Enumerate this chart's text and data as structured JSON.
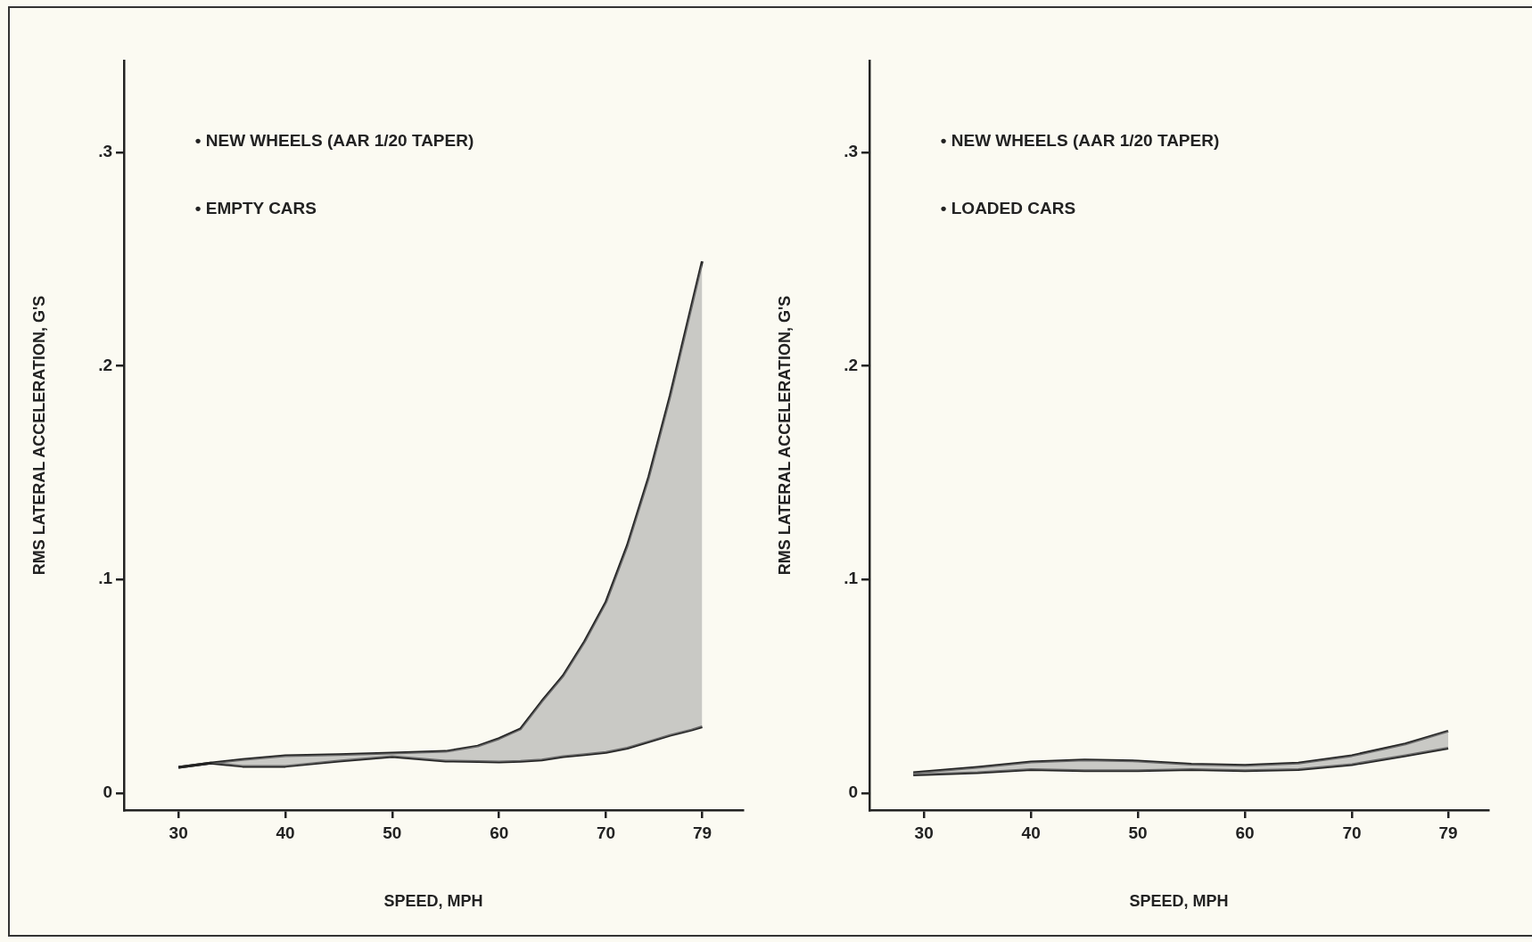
{
  "chart_data": [
    {
      "type": "line",
      "xlabel": "SPEED, MPH",
      "ylabel": "RMS LATERAL ACCELERATION, G'S",
      "annotations": [
        "• NEW WHEELS (AAR 1/20 TAPER)",
        "• EMPTY CARS"
      ],
      "xlim": [
        24.9,
        82.8
      ],
      "xticks": [
        30,
        40,
        50,
        60,
        70,
        79
      ],
      "ylim": [
        -0.008,
        0.343
      ],
      "yticks": [
        {
          "value": 0,
          "label": "0"
        },
        {
          "value": 0.1,
          "label": ".1"
        },
        {
          "value": 0.2,
          "label": ".2"
        },
        {
          "value": 0.3,
          "label": ".3"
        }
      ],
      "grid": false,
      "marker": "none",
      "series": [
        {
          "color": "#222222",
          "x": [
            30,
            33,
            36,
            40,
            45,
            50,
            55,
            58,
            60,
            62,
            64,
            66,
            68,
            70,
            72,
            74,
            76,
            78,
            79
          ],
          "values": [
            0.012,
            0.014,
            0.0157,
            0.0175,
            0.018,
            0.0187,
            0.0195,
            0.022,
            0.0255,
            0.03,
            0.043,
            0.055,
            0.071,
            0.0895,
            0.116,
            0.148,
            0.186,
            0.228,
            0.249
          ],
          "upper": [
            0.012,
            0.014,
            0.0157,
            0.0175,
            0.018,
            0.0187,
            0.0195,
            0.022,
            0.0255,
            0.03,
            0.043,
            0.055,
            0.071,
            0.0895,
            0.116,
            0.148,
            0.186,
            0.228,
            0.249
          ],
          "lower": [
            0.012,
            0.014,
            0.0125,
            0.0125,
            0.015,
            0.017,
            0.015,
            0.0147,
            0.0145,
            0.0148,
            0.0155,
            0.017,
            0.018,
            0.019,
            0.021,
            0.024,
            0.027,
            0.0295,
            0.031
          ]
        },
        {
          "color": "#222222",
          "x": [
            30,
            33,
            36,
            40,
            45,
            50,
            55,
            58,
            60,
            62,
            64,
            66,
            68,
            70,
            72,
            74,
            76,
            78,
            79
          ],
          "values": [
            0.012,
            0.014,
            0.0125,
            0.0125,
            0.015,
            0.017,
            0.015,
            0.0147,
            0.0145,
            0.0148,
            0.0155,
            0.017,
            0.018,
            0.019,
            0.021,
            0.024,
            0.027,
            0.0295,
            0.031
          ]
        }
      ]
    },
    {
      "type": "line",
      "xlabel": "SPEED, MPH",
      "ylabel": "RMS LATERAL ACCELERATION, G'S",
      "annotations": [
        "• NEW WHEELS (AAR 1/20 TAPER)",
        "• LOADED CARS"
      ],
      "xlim": [
        24.9,
        82.75
      ],
      "xticks": [
        30,
        40,
        50,
        60,
        70,
        79
      ],
      "ylim": [
        -0.008,
        0.343
      ],
      "yticks": [
        {
          "value": 0,
          "label": "0"
        },
        {
          "value": 0.1,
          "label": ".1"
        },
        {
          "value": 0.2,
          "label": ".2"
        },
        {
          "value": 0.3,
          "label": ".3"
        }
      ],
      "grid": false,
      "marker": "none",
      "series": [
        {
          "color": "#222222",
          "x": [
            29,
            35,
            40,
            45,
            50,
            55,
            60,
            65,
            70,
            75,
            79
          ],
          "values": [
            0.0095,
            0.012,
            0.0145,
            0.0155,
            0.015,
            0.0135,
            0.013,
            0.014,
            0.0175,
            0.023,
            0.029
          ],
          "upper": [
            0.0095,
            0.012,
            0.0145,
            0.0155,
            0.015,
            0.0135,
            0.013,
            0.014,
            0.0175,
            0.023,
            0.029
          ],
          "lower": [
            0.0085,
            0.0095,
            0.011,
            0.0105,
            0.0105,
            0.011,
            0.0105,
            0.011,
            0.0133,
            0.0175,
            0.021
          ]
        },
        {
          "color": "#222222",
          "x": [
            29,
            35,
            40,
            45,
            50,
            55,
            60,
            65,
            70,
            75,
            79
          ],
          "values": [
            0.0085,
            0.0095,
            0.011,
            0.0105,
            0.0105,
            0.011,
            0.0105,
            0.011,
            0.0133,
            0.0175,
            0.021
          ]
        }
      ]
    }
  ]
}
